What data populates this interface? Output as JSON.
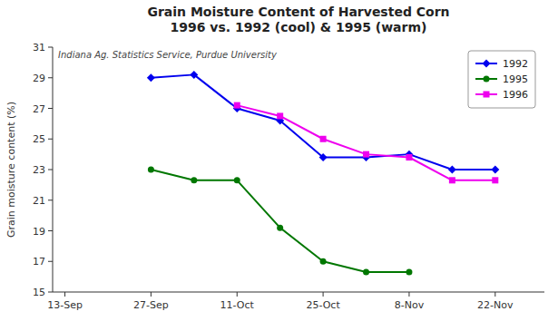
{
  "chart_data": {
    "type": "line",
    "title": "Grain Moisture Content of Harvested Corn\n1996 vs. 1992 (cool) & 1995 (warm)",
    "subtitle": "Indiana Ag. Statistics Service, Purdue University",
    "y_label": "Grain moisture content (%)",
    "xlim": [
      -2,
      78
    ],
    "xticks": [
      {
        "value": 0,
        "label": "13-Sep"
      },
      {
        "value": 14,
        "label": "27-Sep"
      },
      {
        "value": 28,
        "label": "11-Oct"
      },
      {
        "value": 42,
        "label": "25-Oct"
      },
      {
        "value": 56,
        "label": "8-Nov"
      },
      {
        "value": 70,
        "label": "22-Nov"
      }
    ],
    "ylim": [
      15,
      31
    ],
    "yticks": [
      15,
      17,
      19,
      21,
      23,
      25,
      27,
      29,
      31
    ],
    "grid": false,
    "legend": "upper right",
    "series": [
      {
        "name": "1992",
        "color": "#0000ee",
        "marker": "diamond",
        "x": [
          14,
          21,
          28,
          35,
          42,
          49,
          56,
          63,
          70
        ],
        "values": [
          29.0,
          29.2,
          27.0,
          26.2,
          23.8,
          23.8,
          24.0,
          23.0,
          23.0
        ]
      },
      {
        "name": "1995",
        "color": "#007700",
        "marker": "circle",
        "x": [
          14,
          21,
          28,
          35,
          42,
          49,
          56
        ],
        "values": [
          23.0,
          22.3,
          22.3,
          19.2,
          17.0,
          16.3,
          16.3
        ]
      },
      {
        "name": "1996",
        "color": "#ee00ee",
        "marker": "square",
        "x": [
          28,
          35,
          42,
          49,
          56,
          63,
          70
        ],
        "values": [
          27.2,
          26.5,
          25.0,
          24.0,
          23.8,
          22.3,
          22.3
        ]
      }
    ]
  }
}
